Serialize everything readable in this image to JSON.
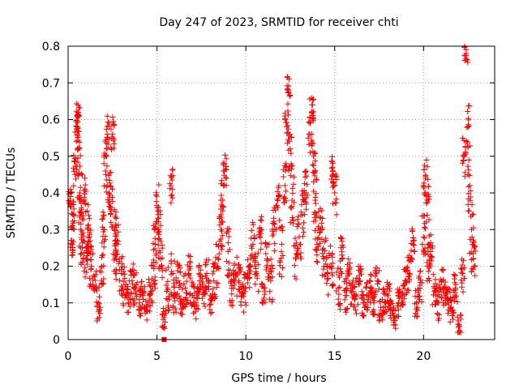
{
  "chart_data": {
    "type": "scatter",
    "title": "Day 247 of 2023, SRMTID for receiver chti",
    "xlabel": "GPS time / hours",
    "ylabel": "SRMTID / TECUs",
    "xlim": [
      0,
      24
    ],
    "ylim": [
      0,
      0.8
    ],
    "xticks": [
      "0",
      "5",
      "10",
      "15",
      "20"
    ],
    "yticks": [
      "0",
      "0.1",
      "0.2",
      "0.3",
      "0.4",
      "0.5",
      "0.6",
      "0.7",
      "0.8"
    ],
    "grid": true,
    "marker": "+",
    "color": "#ff0000",
    "series": [
      {
        "name": "SRMTID",
        "x": [
          0.1,
          0.2,
          0.3,
          0.4,
          0.5,
          0.55,
          0.6,
          0.65,
          0.7,
          0.8,
          0.9,
          1.0,
          1.1,
          1.2,
          1.3,
          1.5,
          1.7,
          1.9,
          2.0,
          2.1,
          2.2,
          2.3,
          2.4,
          2.5,
          2.6,
          2.7,
          2.8,
          3.0,
          3.2,
          3.4,
          3.6,
          3.8,
          4.0,
          4.2,
          4.4,
          4.6,
          4.8,
          4.9,
          5.0,
          5.1,
          5.2,
          5.4,
          5.6,
          5.8,
          5.9,
          6.0,
          6.2,
          6.4,
          6.6,
          6.8,
          7.0,
          7.2,
          7.4,
          7.6,
          7.8,
          8.0,
          8.2,
          8.4,
          8.6,
          8.7,
          8.8,
          9.0,
          9.2,
          9.4,
          9.6,
          9.8,
          10.0,
          10.2,
          10.4,
          10.6,
          10.8,
          11.0,
          11.2,
          11.4,
          11.6,
          11.8,
          12.0,
          12.2,
          12.3,
          12.4,
          12.5,
          12.6,
          12.8,
          13.0,
          13.2,
          13.4,
          13.6,
          13.7,
          13.8,
          13.9,
          14.0,
          14.2,
          14.4,
          14.6,
          14.8,
          14.9,
          15.0,
          15.2,
          15.4,
          15.6,
          15.8,
          16.0,
          16.2,
          16.4,
          16.6,
          16.8,
          17.0,
          17.2,
          17.4,
          17.6,
          17.8,
          18.0,
          18.2,
          18.4,
          18.6,
          18.8,
          19.0,
          19.2,
          19.4,
          19.6,
          19.8,
          20.0,
          20.1,
          20.2,
          20.3,
          20.4,
          20.6,
          20.8,
          21.0,
          21.2,
          21.4,
          21.6,
          21.8,
          22.0,
          22.2,
          22.3,
          22.4,
          22.5,
          22.6,
          22.7,
          22.8
        ],
        "y": [
          0.38,
          0.27,
          0.34,
          0.45,
          0.58,
          0.62,
          0.52,
          0.4,
          0.3,
          0.25,
          0.38,
          0.22,
          0.3,
          0.28,
          0.2,
          0.14,
          0.1,
          0.2,
          0.3,
          0.46,
          0.56,
          0.4,
          0.36,
          0.56,
          0.3,
          0.22,
          0.26,
          0.18,
          0.15,
          0.12,
          0.16,
          0.14,
          0.1,
          0.12,
          0.08,
          0.12,
          0.16,
          0.26,
          0.36,
          0.3,
          0.22,
          0.06,
          0.14,
          0.42,
          0.18,
          0.12,
          0.16,
          0.1,
          0.14,
          0.18,
          0.12,
          0.1,
          0.16,
          0.14,
          0.18,
          0.12,
          0.16,
          0.2,
          0.3,
          0.38,
          0.46,
          0.24,
          0.14,
          0.18,
          0.16,
          0.12,
          0.14,
          0.2,
          0.26,
          0.18,
          0.28,
          0.14,
          0.22,
          0.16,
          0.3,
          0.36,
          0.24,
          0.42,
          0.58,
          0.68,
          0.52,
          0.38,
          0.22,
          0.28,
          0.34,
          0.4,
          0.56,
          0.62,
          0.5,
          0.38,
          0.26,
          0.3,
          0.22,
          0.18,
          0.2,
          0.46,
          0.4,
          0.14,
          0.22,
          0.12,
          0.18,
          0.14,
          0.12,
          0.16,
          0.1,
          0.12,
          0.14,
          0.1,
          0.16,
          0.08,
          0.1,
          0.12,
          0.08,
          0.06,
          0.1,
          0.12,
          0.16,
          0.18,
          0.26,
          0.1,
          0.14,
          0.28,
          0.44,
          0.38,
          0.2,
          0.24,
          0.14,
          0.1,
          0.16,
          0.12,
          0.1,
          0.08,
          0.14,
          0.04,
          0.18,
          0.5,
          0.78,
          0.58,
          0.42,
          0.3,
          0.22
        ],
        "spread": [
          0.03,
          0.05,
          0.04,
          0.06,
          0.04,
          0.03,
          0.05,
          0.06,
          0.06,
          0.05,
          0.07,
          0.05,
          0.07,
          0.06,
          0.06,
          0.05,
          0.05,
          0.05,
          0.05,
          0.06,
          0.05,
          0.06,
          0.06,
          0.05,
          0.07,
          0.06,
          0.06,
          0.06,
          0.06,
          0.05,
          0.05,
          0.05,
          0.04,
          0.04,
          0.03,
          0.05,
          0.06,
          0.06,
          0.07,
          0.07,
          0.06,
          0.03,
          0.06,
          0.05,
          0.06,
          0.05,
          0.05,
          0.04,
          0.05,
          0.06,
          0.05,
          0.05,
          0.05,
          0.05,
          0.05,
          0.05,
          0.05,
          0.06,
          0.06,
          0.06,
          0.05,
          0.07,
          0.05,
          0.05,
          0.05,
          0.05,
          0.05,
          0.06,
          0.06,
          0.06,
          0.06,
          0.05,
          0.06,
          0.06,
          0.06,
          0.06,
          0.07,
          0.06,
          0.05,
          0.04,
          0.06,
          0.07,
          0.06,
          0.06,
          0.07,
          0.06,
          0.05,
          0.05,
          0.06,
          0.07,
          0.06,
          0.06,
          0.06,
          0.06,
          0.06,
          0.05,
          0.06,
          0.06,
          0.06,
          0.05,
          0.05,
          0.05,
          0.05,
          0.04,
          0.04,
          0.04,
          0.04,
          0.04,
          0.04,
          0.03,
          0.04,
          0.04,
          0.03,
          0.03,
          0.04,
          0.04,
          0.04,
          0.05,
          0.05,
          0.04,
          0.05,
          0.06,
          0.05,
          0.06,
          0.06,
          0.05,
          0.05,
          0.05,
          0.05,
          0.05,
          0.04,
          0.04,
          0.04,
          0.03,
          0.05,
          0.07,
          0.03,
          0.07,
          0.07,
          0.07,
          0.05
        ]
      }
    ],
    "special_marker": {
      "x": 5.4,
      "y": 0.0
    }
  }
}
